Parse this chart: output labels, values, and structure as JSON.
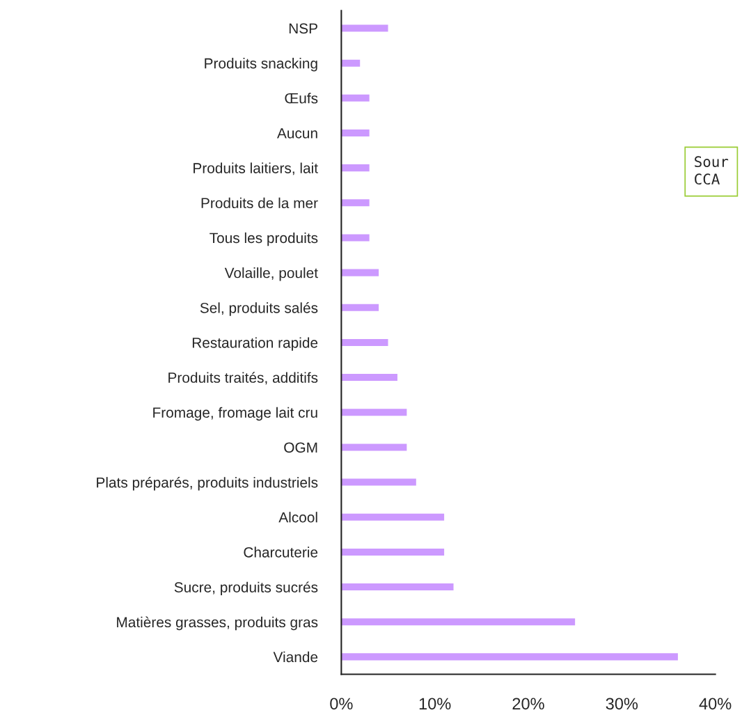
{
  "chart_data": {
    "type": "bar",
    "orientation": "horizontal",
    "categories": [
      "NSP",
      "Produits snacking",
      "Œufs",
      "Aucun",
      "Produits laitiers, lait",
      "Produits de la mer",
      "Tous les produits",
      "Volaille, poulet",
      "Sel, produits salés",
      "Restauration rapide",
      "Produits traités, additifs",
      "Fromage, fromage lait cru",
      "OGM",
      "Plats préparés, produits industriels",
      "Alcool",
      "Charcuterie",
      "Sucre, produits sucrés",
      "Matières grasses, produits gras",
      "Viande"
    ],
    "values": [
      5,
      2,
      3,
      3,
      3,
      3,
      3,
      4,
      4,
      5,
      6,
      7,
      7,
      8,
      11,
      11,
      12,
      25,
      36
    ],
    "color": "#cc99ff",
    "xlim": [
      0,
      40
    ],
    "xticks": [
      {
        "value": 0,
        "label": "0%"
      },
      {
        "value": 10,
        "label": "10%"
      },
      {
        "value": 20,
        "label": "20%"
      },
      {
        "value": 30,
        "label": "30%"
      },
      {
        "value": 40,
        "label": "40%"
      }
    ],
    "grid": false,
    "annotations": [
      "Sour\nCCA"
    ]
  }
}
